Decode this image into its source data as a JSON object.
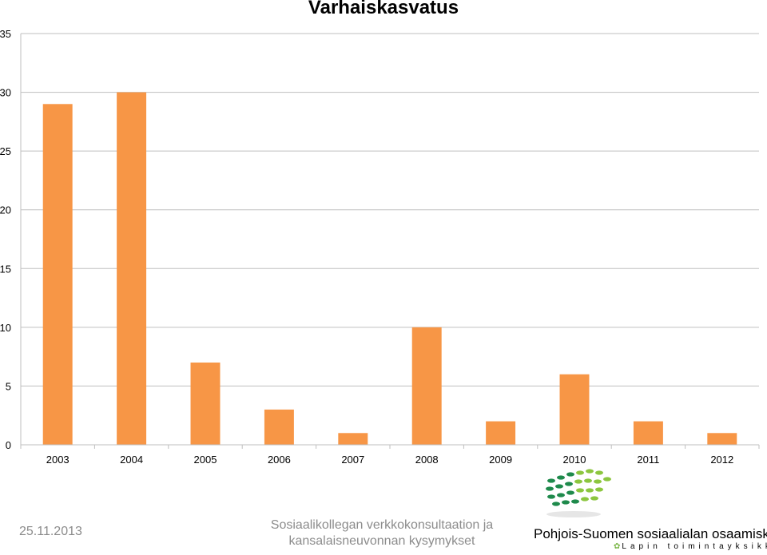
{
  "chart_data": {
    "type": "bar",
    "title": "Varhaiskasvatus",
    "categories": [
      "2003",
      "2004",
      "2005",
      "2006",
      "2007",
      "2008",
      "2009",
      "2010",
      "2011",
      "2012"
    ],
    "values": [
      29,
      30,
      7,
      3,
      1,
      10,
      2,
      6,
      2,
      1
    ],
    "yticks": [
      0,
      5,
      10,
      15,
      20,
      25,
      30,
      35
    ],
    "ylim": [
      0,
      35
    ],
    "xlabel": "",
    "ylabel": "",
    "grid": true,
    "legend": "none",
    "bar_color": "#f79646"
  },
  "footer": {
    "date": "25.11.2013",
    "center_line1": "Sosiaalikollegan verkkokonsultaation ja",
    "center_line2": "kansalaisneuvonnan kysymykset",
    "org_name": "Pohjois-Suomen sosiaalialan osaamiskeskus",
    "org_sub": "Lapin toimintayksikkö"
  },
  "colors": {
    "bar": "#f79646",
    "grid": "#bfbfbf",
    "footer_text": "#8c8c8c",
    "logo_green_dark": "#1f8a4c",
    "logo_green_light": "#8cc63f"
  }
}
